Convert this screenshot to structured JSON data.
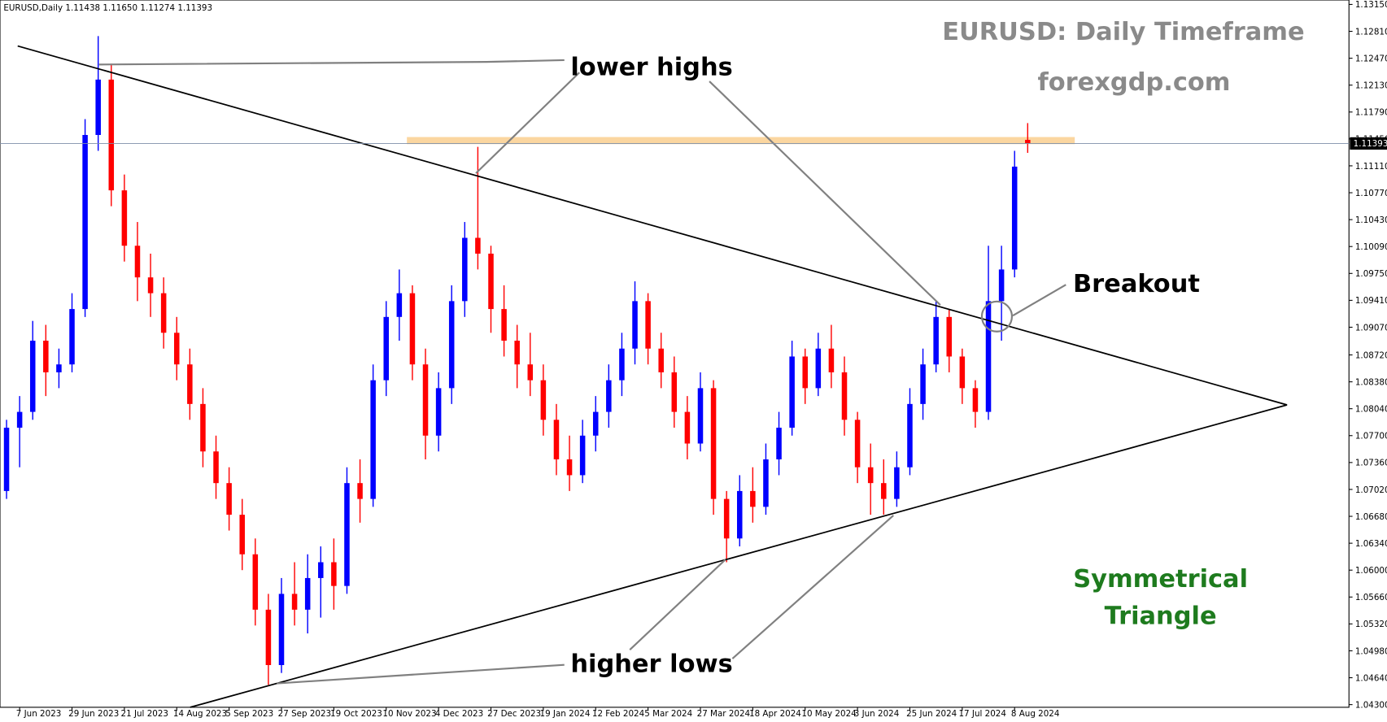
{
  "header": "EURUSD,Daily  1.11438 1.11650 1.11274 1.11393",
  "chart_data": {
    "type": "candlestick",
    "title": "EURUSD: Daily Timeframe",
    "subtitle": "forexgdp.com",
    "annotations": [
      "lower highs",
      "higher lows",
      "Breakout",
      "Symmetrical",
      "Triangle"
    ],
    "bull_color": "#0000ff",
    "bear_color": "#ff0000",
    "categories": [
      null,
      "7 Jun 2023",
      null,
      null,
      null,
      "29 Jun 2023",
      null,
      null,
      null,
      "21 Jul 2023",
      null,
      null,
      null,
      "14 Aug 2023",
      null,
      null,
      null,
      "5 Sep 2023",
      null,
      null,
      null,
      "27 Sep 2023",
      null,
      null,
      null,
      "19 Oct 2023",
      null,
      null,
      null,
      "10 Nov 2023",
      null,
      null,
      null,
      "4 Dec 2023",
      null,
      null,
      null,
      "27 Dec 2023",
      null,
      null,
      null,
      "19 Jan 2024",
      null,
      null,
      null,
      "12 Feb 2024",
      null,
      null,
      null,
      "5 Mar 2024",
      null,
      null,
      null,
      "27 Mar 2024",
      null,
      null,
      null,
      "18 Apr 2024",
      null,
      null,
      null,
      "10 May 2024",
      null,
      null,
      null,
      "3 Jun 2024",
      null,
      null,
      null,
      "25 Jun 2024",
      null,
      null,
      null,
      "17 Jul 2024",
      null,
      null,
      null,
      "8 Aug 2024",
      null
    ],
    "open": [
      1.07,
      1.078,
      1.08,
      1.089,
      1.085,
      1.086,
      1.093,
      1.115,
      1.122,
      1.108,
      1.101,
      1.097,
      1.095,
      1.09,
      1.086,
      1.081,
      1.075,
      1.071,
      1.067,
      1.062,
      1.055,
      1.048,
      1.057,
      1.055,
      1.059,
      1.061,
      1.058,
      1.071,
      1.069,
      1.084,
      1.092,
      1.095,
      1.086,
      1.077,
      1.083,
      1.094,
      1.102,
      1.1,
      1.093,
      1.089,
      1.086,
      1.084,
      1.079,
      1.074,
      1.072,
      1.077,
      1.08,
      1.084,
      1.088,
      1.094,
      1.088,
      1.085,
      1.08,
      1.076,
      1.083,
      1.069,
      1.064,
      1.07,
      1.068,
      1.074,
      1.078,
      1.087,
      1.083,
      1.088,
      1.085,
      1.079,
      1.073,
      1.071,
      1.069,
      1.073,
      1.081,
      1.086,
      1.092,
      1.087,
      1.083,
      1.08,
      1.094,
      1.098,
      1.11438
    ],
    "high": [
      1.079,
      1.082,
      1.0915,
      1.091,
      1.088,
      1.095,
      1.117,
      1.1275,
      1.124,
      1.11,
      1.104,
      1.1,
      1.097,
      1.092,
      1.088,
      1.083,
      1.077,
      1.073,
      1.069,
      1.064,
      1.057,
      1.059,
      1.061,
      1.062,
      1.063,
      1.064,
      1.073,
      1.074,
      1.086,
      1.094,
      1.098,
      1.096,
      1.088,
      1.085,
      1.096,
      1.104,
      1.1135,
      1.101,
      1.096,
      1.091,
      1.09,
      1.086,
      1.081,
      1.077,
      1.079,
      1.082,
      1.086,
      1.09,
      1.0965,
      1.095,
      1.09,
      1.087,
      1.082,
      1.085,
      1.084,
      1.07,
      1.072,
      1.073,
      1.076,
      1.08,
      1.089,
      1.088,
      1.09,
      1.091,
      1.087,
      1.08,
      1.076,
      1.074,
      1.075,
      1.083,
      1.088,
      1.094,
      1.093,
      1.088,
      1.084,
      1.101,
      1.101,
      1.113,
      1.1165
    ],
    "low": [
      1.069,
      1.073,
      1.079,
      1.082,
      1.083,
      1.085,
      1.092,
      1.113,
      1.106,
      1.099,
      1.094,
      1.092,
      1.088,
      1.084,
      1.079,
      1.073,
      1.069,
      1.065,
      1.06,
      1.053,
      1.0455,
      1.047,
      1.053,
      1.052,
      1.054,
      1.055,
      1.057,
      1.066,
      1.068,
      1.082,
      1.089,
      1.084,
      1.074,
      1.075,
      1.081,
      1.092,
      1.098,
      1.09,
      1.087,
      1.083,
      1.082,
      1.077,
      1.072,
      1.07,
      1.071,
      1.075,
      1.078,
      1.082,
      1.086,
      1.086,
      1.083,
      1.078,
      1.074,
      1.075,
      1.067,
      1.061,
      1.063,
      1.066,
      1.067,
      1.072,
      1.077,
      1.081,
      1.082,
      1.083,
      1.077,
      1.071,
      1.067,
      1.067,
      1.068,
      1.072,
      1.079,
      1.085,
      1.085,
      1.081,
      1.078,
      1.079,
      1.089,
      1.097,
      1.11274
    ],
    "close": [
      1.078,
      1.08,
      1.089,
      1.085,
      1.086,
      1.093,
      1.115,
      1.122,
      1.108,
      1.101,
      1.097,
      1.095,
      1.09,
      1.086,
      1.081,
      1.075,
      1.071,
      1.067,
      1.062,
      1.055,
      1.048,
      1.057,
      1.055,
      1.059,
      1.061,
      1.058,
      1.071,
      1.069,
      1.084,
      1.092,
      1.095,
      1.086,
      1.077,
      1.083,
      1.094,
      1.102,
      1.1,
      1.093,
      1.089,
      1.086,
      1.084,
      1.079,
      1.074,
      1.072,
      1.077,
      1.08,
      1.084,
      1.088,
      1.094,
      1.088,
      1.085,
      1.08,
      1.076,
      1.083,
      1.069,
      1.064,
      1.07,
      1.068,
      1.074,
      1.078,
      1.087,
      1.083,
      1.088,
      1.085,
      1.079,
      1.073,
      1.071,
      1.069,
      1.073,
      1.081,
      1.086,
      1.092,
      1.087,
      1.083,
      1.08,
      1.094,
      1.098,
      1.111,
      1.11393
    ],
    "last_price": 1.11393,
    "ylim": [
      1.043,
      1.1315
    ],
    "yticks": [
      {
        "value": 1.1315,
        "label": "1.13150"
      },
      {
        "value": 1.1281,
        "label": "1.12810"
      },
      {
        "value": 1.1247,
        "label": "1.12470"
      },
      {
        "value": 1.1213,
        "label": "1.12130"
      },
      {
        "value": 1.1179,
        "label": "1.11790"
      },
      {
        "value": 1.1145,
        "label": "1.11450"
      },
      {
        "value": 1.1111,
        "label": "1.11110"
      },
      {
        "value": 1.1077,
        "label": "1.10770"
      },
      {
        "value": 1.1043,
        "label": "1.10430"
      },
      {
        "value": 1.1009,
        "label": "1.10090"
      },
      {
        "value": 1.0975,
        "label": "1.09750"
      },
      {
        "value": 1.0941,
        "label": "1.09410"
      },
      {
        "value": 1.0907,
        "label": "1.09070"
      },
      {
        "value": 1.0872,
        "label": "1.08720"
      },
      {
        "value": 1.0838,
        "label": "1.08380"
      },
      {
        "value": 1.0804,
        "label": "1.08040"
      },
      {
        "value": 1.077,
        "label": "1.07700"
      },
      {
        "value": 1.0736,
        "label": "1.07360"
      },
      {
        "value": 1.0702,
        "label": "1.07020"
      },
      {
        "value": 1.0668,
        "label": "1.06680"
      },
      {
        "value": 1.0634,
        "label": "1.06340"
      },
      {
        "value": 1.06,
        "label": "1.06000"
      },
      {
        "value": 1.0566,
        "label": "1.05660"
      },
      {
        "value": 1.0532,
        "label": "1.05320"
      },
      {
        "value": 1.0498,
        "label": "1.04980"
      },
      {
        "value": 1.0464,
        "label": "1.04640"
      },
      {
        "value": 1.043,
        "label": "1.04300"
      }
    ]
  }
}
